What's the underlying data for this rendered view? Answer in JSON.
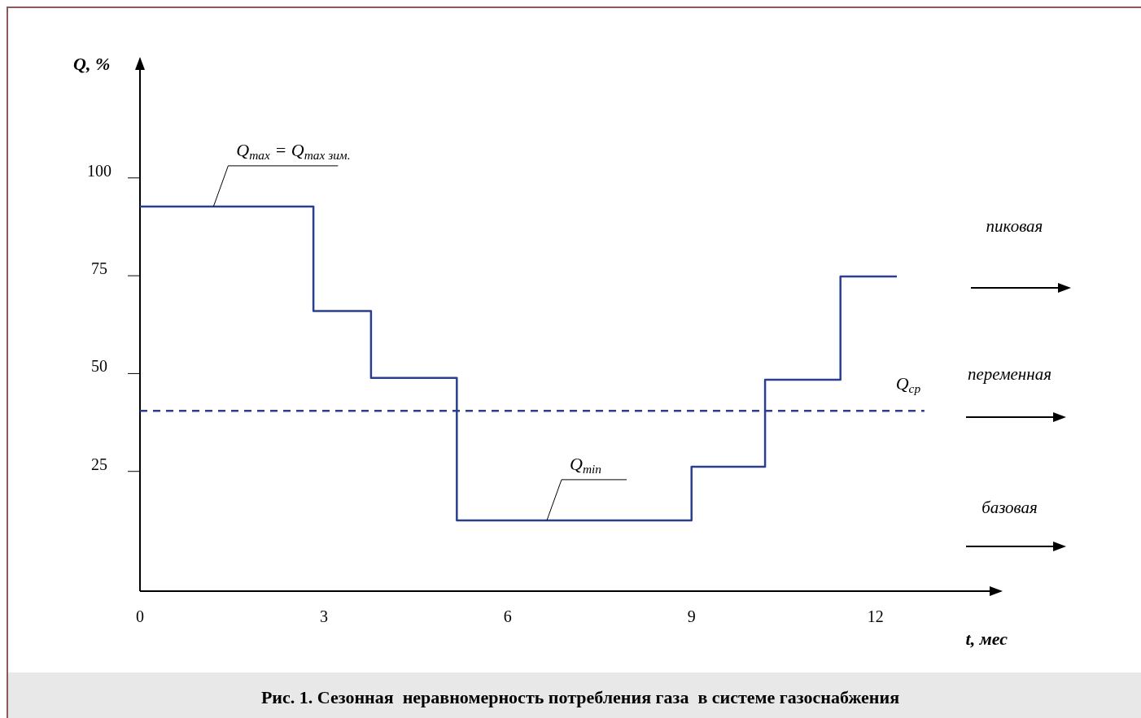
{
  "chart_data": {
    "type": "step",
    "xlabel": "t, мес",
    "ylabel": "Q, %",
    "xlim": [
      0,
      14.05
    ],
    "ylim": [
      -5.6,
      130.5
    ],
    "xticks": [
      0,
      3,
      6,
      9,
      12
    ],
    "yticks": [
      25,
      50,
      75,
      100
    ],
    "series": [
      {
        "type": "step",
        "color": "#2b3f8f",
        "x": [
          0,
          2.83,
          3.77,
          5.17,
          9.0,
          10.2,
          11.43,
          12.35
        ],
        "values": [
          92.7,
          66,
          48.9,
          12.5,
          26.2,
          48.4,
          74.8,
          74.8
        ]
      },
      {
        "type": "line",
        "name": "Q$_{ср}$",
        "line_style": "dashed",
        "color": "#2b3f8f",
        "x": [
          0,
          12.8
        ],
        "values": [
          40.5,
          40.5
        ]
      }
    ],
    "annotations": [
      {
        "text": "Q$_{max}$ = Q$_{max зим.}$",
        "x": 1.2,
        "y": 92.7
      },
      {
        "text": "Q$_{min}$",
        "x": 6.64,
        "y": 12.5
      },
      "пиковая",
      "переменная",
      "базовая",
      "Рис. 1. Сезонная  неравномерность потребления газа  в системе газоснабжения"
    ]
  }
}
